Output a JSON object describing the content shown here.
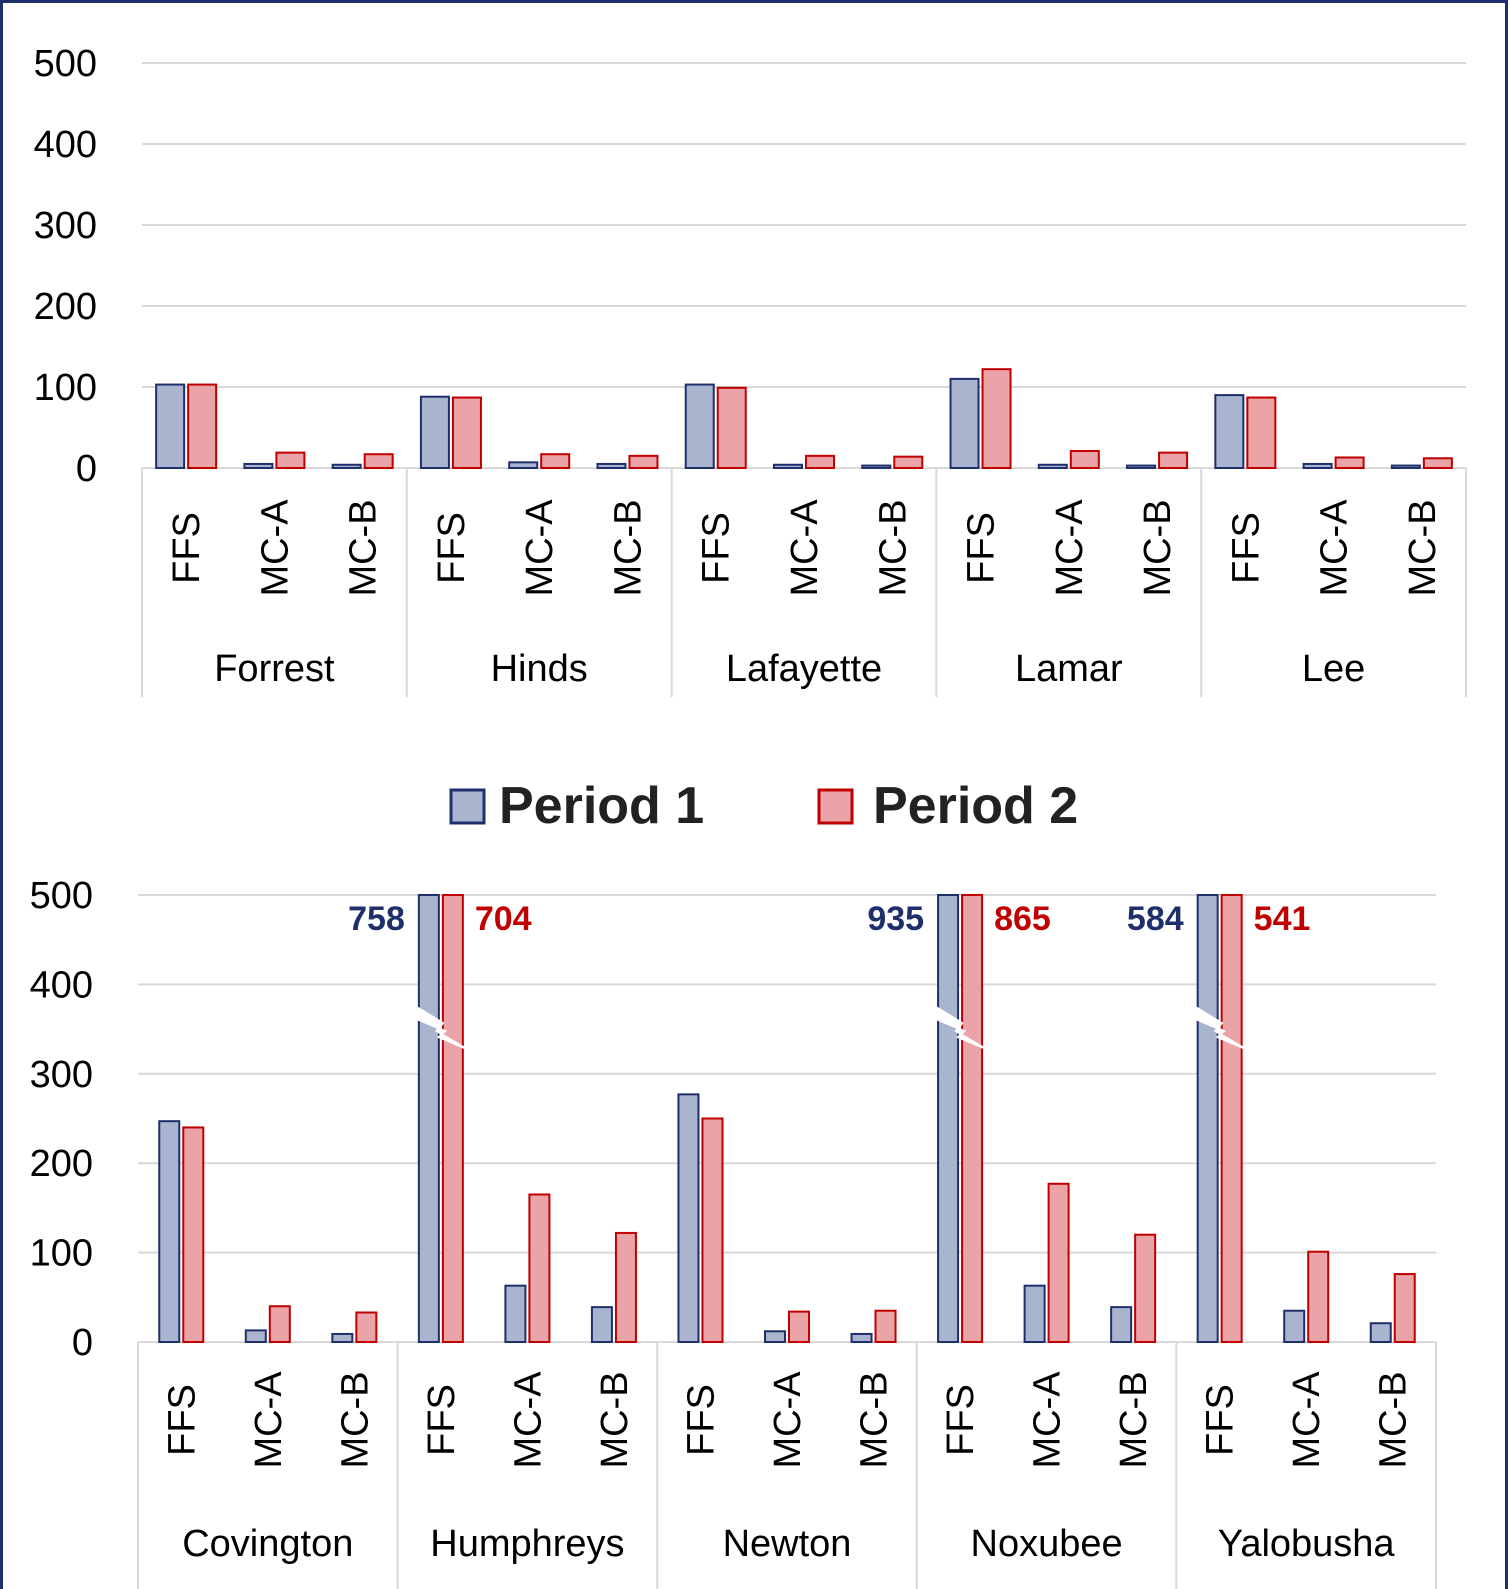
{
  "colors": {
    "period1_fill": "#a9b4cf",
    "period1_stroke": "#1f2f6b",
    "period2_fill": "#eaa3a6",
    "period2_stroke": "#c00000",
    "label1": "#1f2f6b",
    "label2": "#c00000",
    "grid": "#d9d9d9",
    "frame": "#1f2f6b"
  },
  "legend": {
    "items": [
      "Period 1",
      "Period 2"
    ],
    "placement": "between-charts"
  },
  "chart_data": [
    {
      "type": "bar",
      "groups": [
        "Forrest",
        "Hinds",
        "Lafayette",
        "Lamar",
        "Lee"
      ],
      "categories": [
        "FFS",
        "MC-A",
        "MC-B"
      ],
      "yticks": [
        "0",
        "100",
        "200",
        "300",
        "400",
        "500"
      ],
      "ylim": [
        0,
        500
      ],
      "grid": true,
      "series": [
        {
          "name": "Period 1",
          "values": [
            [
              103,
              5,
              4
            ],
            [
              88,
              7,
              5
            ],
            [
              103,
              4,
              3
            ],
            [
              110,
              4,
              3
            ],
            [
              90,
              5,
              3
            ]
          ]
        },
        {
          "name": "Period 2",
          "values": [
            [
              103,
              19,
              17
            ],
            [
              87,
              17,
              15
            ],
            [
              99,
              15,
              14
            ],
            [
              122,
              21,
              19
            ],
            [
              87,
              13,
              12
            ]
          ]
        }
      ]
    },
    {
      "type": "bar",
      "groups": [
        "Covington",
        "Humphreys",
        "Newton",
        "Noxubee",
        "Yalobusha"
      ],
      "categories": [
        "FFS",
        "MC-A",
        "MC-B"
      ],
      "yticks": [
        "0",
        "100",
        "200",
        "300",
        "400",
        "500"
      ],
      "ylim": [
        0,
        500
      ],
      "grid": true,
      "axis_break": true,
      "series": [
        {
          "name": "Period 1",
          "values": [
            [
              247,
              13,
              9
            ],
            [
              758,
              63,
              39
            ],
            [
              277,
              12,
              9
            ],
            [
              935,
              63,
              39
            ],
            [
              584,
              35,
              21
            ]
          ]
        },
        {
          "name": "Period 2",
          "values": [
            [
              240,
              40,
              33
            ],
            [
              704,
              165,
              122
            ],
            [
              250,
              34,
              35
            ],
            [
              865,
              177,
              120
            ],
            [
              541,
              101,
              76
            ]
          ]
        }
      ],
      "data_labels": [
        {
          "group": "Humphreys",
          "series": "Period 1",
          "text": "758"
        },
        {
          "group": "Humphreys",
          "series": "Period 2",
          "text": "704"
        },
        {
          "group": "Noxubee",
          "series": "Period 1",
          "text": "935"
        },
        {
          "group": "Noxubee",
          "series": "Period 2",
          "text": "865"
        },
        {
          "group": "Yalobusha",
          "series": "Period 1",
          "text": "584"
        },
        {
          "group": "Yalobusha",
          "series": "Period 2",
          "text": "541"
        }
      ]
    }
  ]
}
